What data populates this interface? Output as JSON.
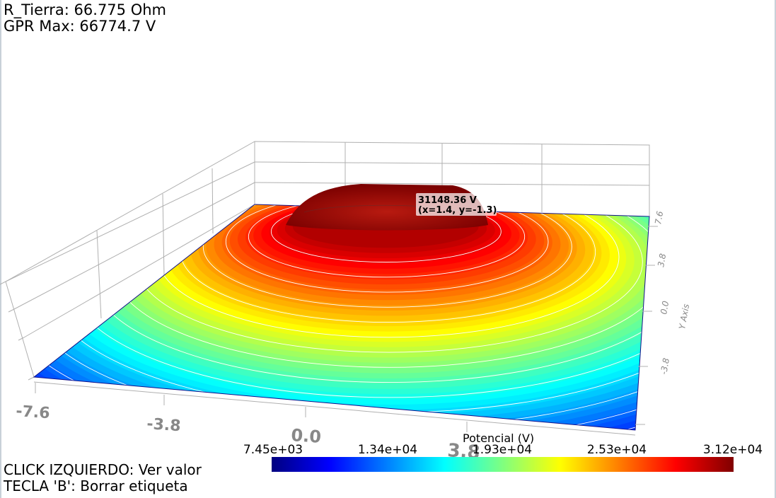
{
  "hud": {
    "resistance": "R_Tierra: 66.775 Ohm",
    "gpr_max": "GPR Max: 66774.7 V",
    "hint_click": "CLICK IZQUIERDO: Ver valor",
    "hint_key": "TECLA 'B': Borrar etiqueta"
  },
  "tooltip": {
    "value": "31148.36 V",
    "coords": "(x=1.4, y=-1.3)"
  },
  "colorbar": {
    "title": "Potencial (V)",
    "ticks": [
      "7.45e+03",
      "1.34e+04",
      "1.93e+04",
      "2.53e+04",
      "3.12e+04"
    ],
    "colormap": "jet"
  },
  "chart_data": {
    "type": "surface",
    "xlabel": "",
    "ylabel": "Y Axis",
    "x_ticks": [
      "-7.6",
      "-3.8",
      "0.0",
      "3.8"
    ],
    "y_ticks": [
      "7.6",
      "3.8",
      "0.0",
      "-3.8"
    ],
    "x_range": [
      -7.6,
      7.6
    ],
    "y_range": [
      -7.6,
      7.6
    ],
    "value_range": [
      7450,
      31200
    ],
    "peak": {
      "value": 31148.36,
      "x": 1.4,
      "y": -1.3
    },
    "contour_lines": 14,
    "grid": true
  }
}
